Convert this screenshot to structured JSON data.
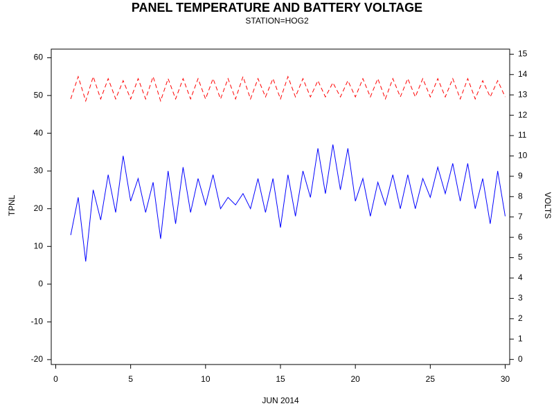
{
  "chart_data": {
    "type": "line",
    "title": "PANEL TEMPERATURE AND BATTERY VOLTAGE",
    "subtitle": "STATION=HOG2",
    "xlabel": "JUN 2014",
    "ylabel": "TPNL",
    "y2label": "VOLTS",
    "x": [
      1,
      1.5,
      2,
      2.5,
      3,
      3.5,
      4,
      4.5,
      5,
      5.5,
      6,
      6.5,
      7,
      7.5,
      8,
      8.5,
      9,
      9.5,
      10,
      10.5,
      11,
      11.5,
      12,
      12.5,
      13,
      13.5,
      14,
      14.5,
      15,
      15.5,
      16,
      16.5,
      17,
      17.5,
      18,
      18.5,
      19,
      19.5,
      20,
      20.5,
      21,
      21.5,
      22,
      22.5,
      23,
      23.5,
      24,
      24.5,
      25,
      25.5,
      26,
      26.5,
      27,
      27.5,
      28,
      28.5,
      29,
      29.5,
      30
    ],
    "series": [
      {
        "color": "#0000ff",
        "dash": false,
        "values": [
          13,
          23,
          6,
          25,
          17,
          29,
          19,
          34,
          22,
          28,
          19,
          27,
          12,
          30,
          16,
          31,
          19,
          28,
          21,
          29,
          20,
          23,
          21,
          24,
          20,
          28,
          19,
          28,
          15,
          29,
          18,
          30,
          23,
          36,
          24,
          37,
          25,
          36,
          22,
          28,
          18,
          27,
          21,
          29,
          20,
          29,
          20,
          28,
          23,
          31,
          24,
          32,
          22,
          32,
          20,
          28,
          16,
          30,
          18
        ]
      },
      {
        "color": "#ff0000",
        "dash": true,
        "axis": "y2",
        "values": [
          12.8,
          13.9,
          12.7,
          13.9,
          12.8,
          13.8,
          12.8,
          13.7,
          12.8,
          13.8,
          12.8,
          13.9,
          12.7,
          13.8,
          12.8,
          13.8,
          12.8,
          13.8,
          12.8,
          13.8,
          12.8,
          13.8,
          12.8,
          13.9,
          12.8,
          13.8,
          12.9,
          13.8,
          12.8,
          13.9,
          12.9,
          13.8,
          12.9,
          13.7,
          12.9,
          13.6,
          12.9,
          13.7,
          12.9,
          13.8,
          12.9,
          13.8,
          12.8,
          13.8,
          12.9,
          13.8,
          12.9,
          13.8,
          12.9,
          13.8,
          12.9,
          13.8,
          12.8,
          13.8,
          12.8,
          13.7,
          12.9,
          13.7,
          12.9
        ]
      }
    ],
    "xlim": [
      -0.3,
      30.3
    ],
    "xticks": [
      0,
      5,
      10,
      15,
      20,
      25,
      30
    ],
    "ylim": [
      -21.3,
      62.3
    ],
    "yticks": [
      -20,
      -10,
      0,
      10,
      20,
      30,
      40,
      50,
      60
    ],
    "y2lim": [
      -0.25,
      15.25
    ],
    "y2ticks": [
      0,
      1,
      2,
      3,
      4,
      5,
      6,
      7,
      8,
      9,
      10,
      11,
      12,
      13,
      14,
      15
    ]
  }
}
